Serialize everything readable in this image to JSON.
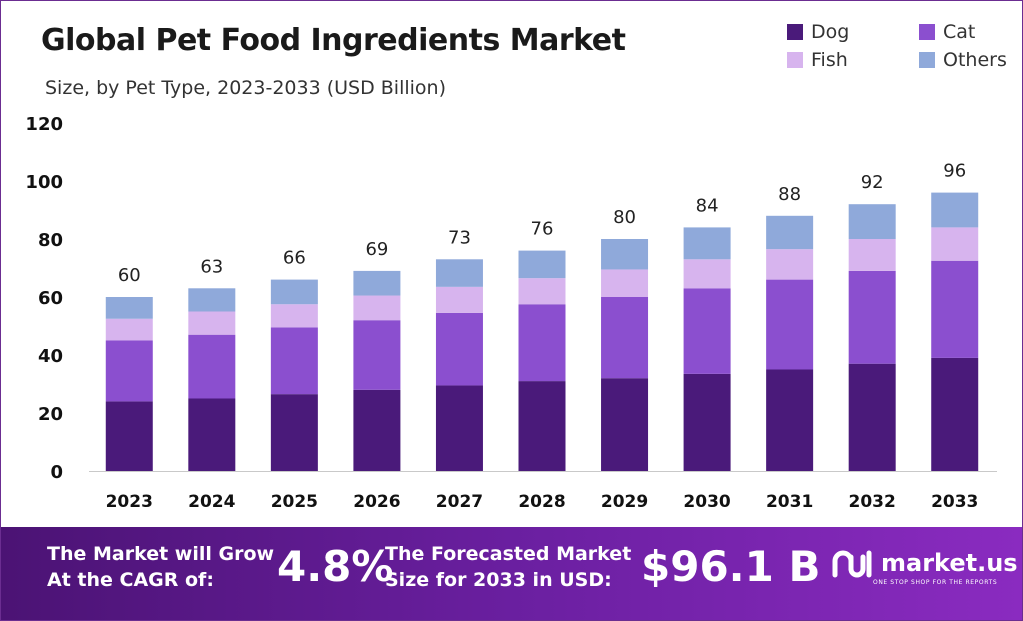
{
  "header": {
    "title": "Global Pet Food Ingredients Market",
    "subtitle": "Size, by Pet Type, 2023-2033 (USD Billion)"
  },
  "legend": [
    {
      "label": "Dog",
      "color": "#4a1a7a"
    },
    {
      "label": "Cat",
      "color": "#8b4fcf"
    },
    {
      "label": "Fish",
      "color": "#d7b4ee"
    },
    {
      "label": "Others",
      "color": "#8fa9da"
    }
  ],
  "chart_data": {
    "type": "bar",
    "stacked": true,
    "categories": [
      "2023",
      "2024",
      "2025",
      "2026",
      "2027",
      "2028",
      "2029",
      "2030",
      "2031",
      "2032",
      "2033"
    ],
    "series": [
      {
        "name": "Dog",
        "values": [
          24,
          25,
          26.5,
          28,
          29.5,
          31,
          32,
          33.5,
          35,
          37,
          39
        ]
      },
      {
        "name": "Cat",
        "values": [
          21,
          22,
          23,
          24,
          25,
          26.5,
          28,
          29.5,
          31,
          32,
          33.5
        ]
      },
      {
        "name": "Fish",
        "values": [
          7.5,
          8,
          8,
          8.5,
          9,
          9,
          9.5,
          10,
          10.5,
          11,
          11.5
        ]
      },
      {
        "name": "Others",
        "values": [
          7.5,
          8,
          8.5,
          8.5,
          9.5,
          9.5,
          10.5,
          11,
          11.5,
          12,
          12
        ]
      }
    ],
    "totals": [
      60,
      63,
      66,
      69,
      73,
      76,
      80,
      84,
      88,
      92,
      96
    ],
    "yticks": [
      0,
      20,
      40,
      60,
      80,
      100,
      120
    ],
    "ylim": [
      0,
      120
    ],
    "legend_position": "top-right"
  },
  "footer": {
    "cagr_label": "The Market will Grow At the CAGR of:",
    "cagr_value": "4.8%",
    "forecast_label": "The Forecasted Market Size for 2033 in USD:",
    "forecast_value": "$96.1 B",
    "brand_name": "market.us",
    "brand_tagline": "ONE STOP SHOP FOR THE REPORTS"
  }
}
